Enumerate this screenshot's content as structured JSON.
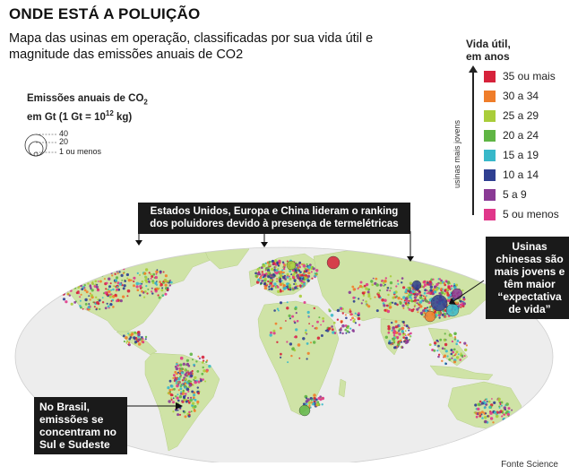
{
  "header": {
    "title": "ONDE ESTÁ A POLUIÇÃO",
    "subtitle": "Mapa das usinas em operação, classificadas por sua vida útil e magnitude das emissões anuais de CO2"
  },
  "emissions_legend": {
    "title_line1": "Emissões anuais de CO",
    "title_sub": "2",
    "title_line2": "em Gt (1 Gt = 10",
    "title_sup": "12",
    "title_end": " kg)",
    "items": [
      "40",
      "20",
      "1 ou menos"
    ]
  },
  "life_legend": {
    "title_line1": "Vida útil,",
    "title_line2": "em anos",
    "axis_label": "usinas mais jovens",
    "items": [
      {
        "label": "35 ou mais",
        "color": "#d6223b"
      },
      {
        "label": "30 a 34",
        "color": "#ef7d2a"
      },
      {
        "label": "25 a 29",
        "color": "#a9cd3a"
      },
      {
        "label": "20 a 24",
        "color": "#5fb544"
      },
      {
        "label": "15 a 19",
        "color": "#38b8c9"
      },
      {
        "label": "10 a 14",
        "color": "#2f3f91"
      },
      {
        "label": "5 a 9",
        "color": "#8a3a95"
      },
      {
        "label": "5 ou menos",
        "color": "#e0378a"
      }
    ]
  },
  "callouts": {
    "top": "Estados Unidos, Europa e China lideram o ranking dos poluidores devido à presença de termelétricas",
    "china": "Usinas chinesas são mais jovens e têm maior “expectativa de vida”",
    "brazil": "No Brasil, emissões se concentram no Sul e Sudeste"
  },
  "source": "Fonte Science",
  "colors": {
    "land": "#cfe3a6",
    "ocean": "#ededed",
    "callout_bg": "#1a1a1a"
  }
}
